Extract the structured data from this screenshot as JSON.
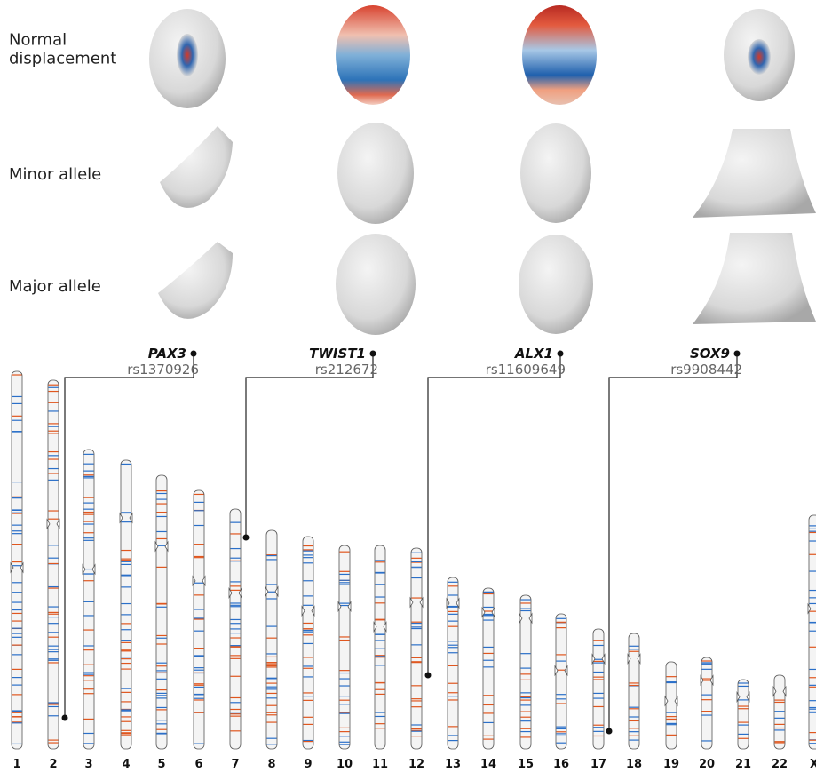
{
  "rows": [
    [
      "Normal",
      "displacement"
    ],
    [
      "Minor allele"
    ],
    [
      "Major allele"
    ]
  ],
  "genes": [
    {
      "name": "PAX3",
      "snp": "rs1370926"
    },
    {
      "name": "TWIST1",
      "snp": "rs212672"
    },
    {
      "name": "ALX1",
      "snp": "rs11609649"
    },
    {
      "name": "SOX9",
      "snp": "rs9908442"
    }
  ],
  "chromosomes": [
    "1",
    "2",
    "3",
    "4",
    "5",
    "6",
    "7",
    "8",
    "9",
    "10",
    "11",
    "12",
    "13",
    "14",
    "15",
    "16",
    "17",
    "18",
    "19",
    "20",
    "21",
    "22",
    "X"
  ]
}
